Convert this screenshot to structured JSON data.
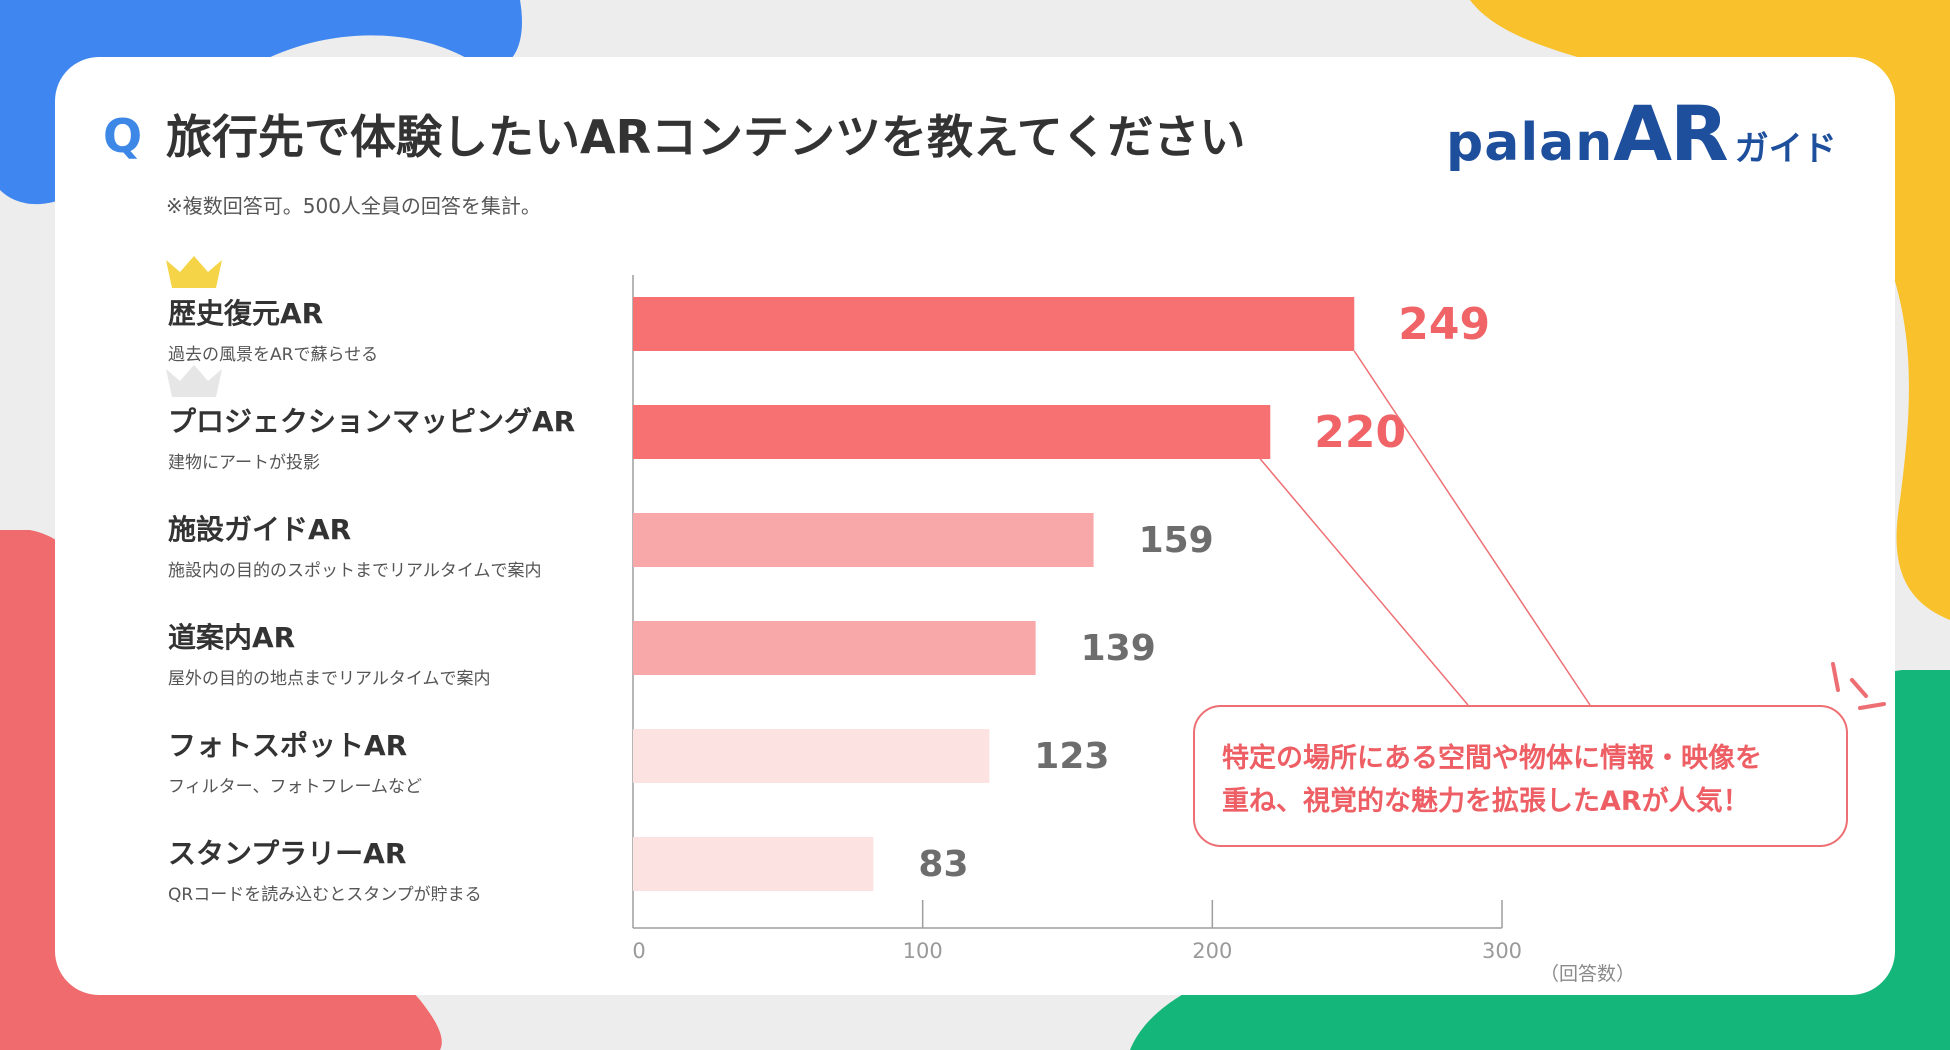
{
  "title": {
    "q_label": "Q",
    "text": "旅行先で体験したいARコンテンツを教えてください",
    "note": "※複数回答可。500人全員の回答を集計。"
  },
  "logo": {
    "palan": "palan",
    "ar": "AR",
    "guide": "ガイド"
  },
  "colors": {
    "top_bar": "#f77173",
    "mid_bar": "#f9a8a9",
    "low_bar": "#fde2e2",
    "gold_crown": "#f5d547",
    "silver_crown": "#e6e6e6",
    "accent_text": "#f06468",
    "gray_text": "#6d6d6d"
  },
  "categories": [
    {
      "name": "歴史復元AR",
      "desc": "過去の風景をARで蘇らせる"
    },
    {
      "name": "プロジェクションマッピングAR",
      "desc": "建物にアートが投影"
    },
    {
      "name": "施設ガイドAR",
      "desc": "施設内の目的のスポットまでリアルタイムで案内"
    },
    {
      "name": "道案内AR",
      "desc": "屋外の目的の地点までリアルタイムで案内"
    },
    {
      "name": "フォトスポットAR",
      "desc": "フィルター、フォトフレームなど"
    },
    {
      "name": "スタンプラリーAR",
      "desc": "QRコードを読み込むとスタンプが貯まる"
    }
  ],
  "chart_data": {
    "type": "bar",
    "orientation": "horizontal",
    "categories": [
      "歴史復元AR",
      "プロジェクションマッピングAR",
      "施設ガイドAR",
      "道案内AR",
      "フォトスポットAR",
      "スタンプラリーAR"
    ],
    "values": [
      249,
      220,
      159,
      139,
      123,
      83
    ],
    "x_ticks": [
      "0",
      "100",
      "200",
      "300"
    ],
    "xlim": [
      0,
      300
    ],
    "unit_label": "（回答数）",
    "rank_icons": [
      "gold-crown",
      "silver-crown"
    ]
  },
  "callout": {
    "line1": "特定の場所にある空間や物体に情報・映像を",
    "line2": "重ね、視覚的な魅力を拡張したARが人気！"
  }
}
